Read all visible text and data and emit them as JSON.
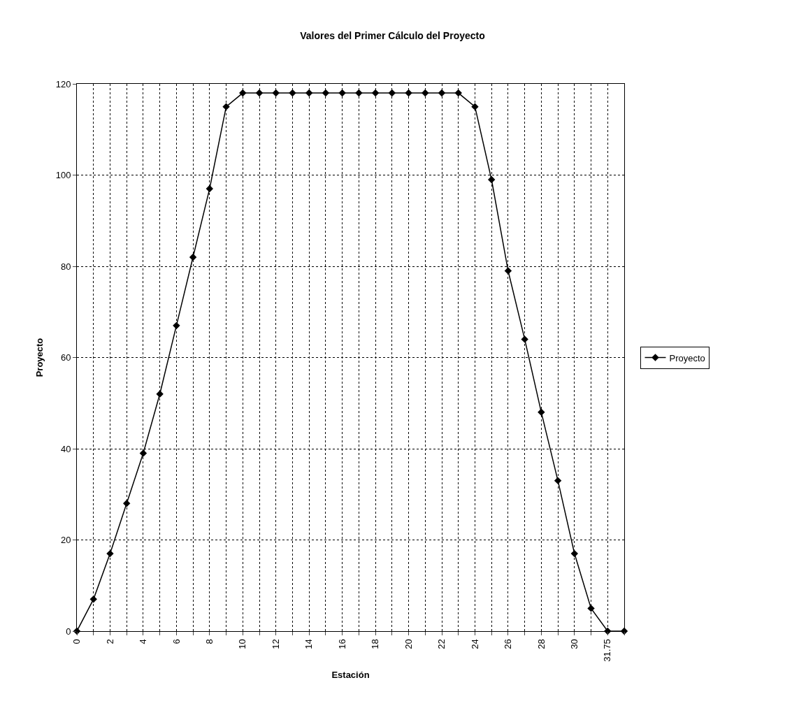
{
  "chart_data": {
    "type": "line",
    "title": "Valores del Primer Cálculo del Proyecto",
    "xlabel": "Estación",
    "ylabel": "Proyecto",
    "categories": [
      "0",
      null,
      "2",
      null,
      "4",
      null,
      "6",
      null,
      "8",
      null,
      "10",
      null,
      "12",
      null,
      "14",
      null,
      "16",
      null,
      "18",
      null,
      "20",
      null,
      "22",
      null,
      "24",
      null,
      "26",
      null,
      "28",
      null,
      "30",
      null,
      "31.75",
      null
    ],
    "series": [
      {
        "name": "Proyecto",
        "color": "#000000",
        "values": [
          0,
          7,
          17,
          28,
          39,
          52,
          67,
          82,
          97,
          115,
          118,
          118,
          118,
          118,
          118,
          118,
          118,
          118,
          118,
          118,
          118,
          118,
          118,
          118,
          115,
          99,
          79,
          64,
          48,
          33,
          17,
          5,
          0,
          0
        ]
      }
    ],
    "ylim": [
      0,
      120
    ],
    "yticks": [
      0,
      20,
      40,
      60,
      80,
      100,
      120
    ],
    "grid": true,
    "legend": "right",
    "marker": "diamond",
    "line_style": "solid"
  }
}
